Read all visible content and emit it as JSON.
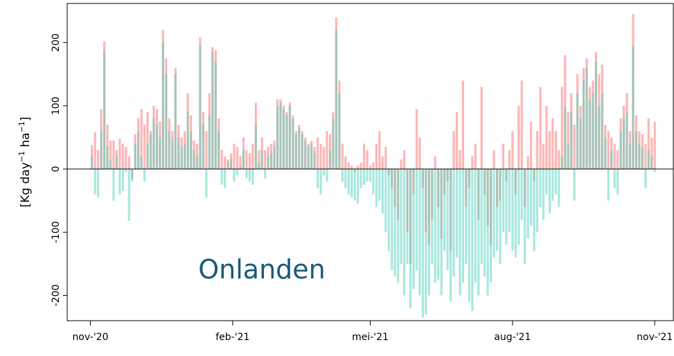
{
  "chart_data": {
    "type": "bar",
    "ylabel": [
      "[Kg day",
      "−1",
      " ha",
      "−1",
      "]"
    ],
    "annotation": "Onlanden",
    "xlim": [
      -15,
      377
    ],
    "xticks": [
      {
        "value": 0,
        "label": "nov-'20"
      },
      {
        "value": 92,
        "label": "feb-'21"
      },
      {
        "value": 181,
        "label": "mei-'21"
      },
      {
        "value": 273,
        "label": "aug-'21"
      },
      {
        "value": 365,
        "label": "nov-'21"
      }
    ],
    "ylim": [
      -240,
      262
    ],
    "yticks": [
      -200,
      -100,
      0,
      100,
      200
    ],
    "x": [
      1,
      3,
      5,
      7,
      9,
      11,
      13,
      15,
      17,
      19,
      21,
      23,
      25,
      27,
      29,
      31,
      33,
      35,
      37,
      39,
      41,
      43,
      45,
      47,
      49,
      51,
      53,
      55,
      57,
      59,
      61,
      63,
      65,
      67,
      69,
      71,
      73,
      75,
      77,
      79,
      81,
      83,
      85,
      87,
      89,
      91,
      93,
      95,
      97,
      99,
      101,
      103,
      105,
      107,
      109,
      111,
      113,
      115,
      117,
      119,
      121,
      123,
      125,
      127,
      129,
      131,
      133,
      135,
      137,
      139,
      141,
      143,
      145,
      147,
      149,
      151,
      153,
      155,
      157,
      159,
      161,
      163,
      165,
      167,
      169,
      171,
      173,
      175,
      177,
      179,
      181,
      183,
      185,
      187,
      189,
      191,
      193,
      195,
      197,
      199,
      201,
      203,
      205,
      207,
      209,
      211,
      213,
      215,
      217,
      219,
      221,
      223,
      225,
      227,
      229,
      231,
      233,
      235,
      237,
      239,
      241,
      243,
      245,
      247,
      249,
      251,
      253,
      255,
      257,
      259,
      261,
      263,
      265,
      267,
      269,
      271,
      273,
      275,
      277,
      279,
      281,
      283,
      285,
      287,
      289,
      291,
      293,
      295,
      297,
      299,
      301,
      303,
      305,
      307,
      309,
      311,
      313,
      315,
      317,
      319,
      321,
      323,
      325,
      327,
      329,
      331,
      333,
      335,
      337,
      339,
      341,
      343,
      345,
      347,
      349,
      351,
      353,
      355,
      357,
      359,
      361,
      363,
      365
    ],
    "series": [
      {
        "color": "#ff6b6b",
        "values": [
          38,
          58,
          30,
          95,
          202,
          70,
          45,
          45,
          30,
          48,
          40,
          35,
          20,
          -15,
          55,
          80,
          95,
          70,
          90,
          60,
          100,
          95,
          75,
          220,
          175,
          80,
          60,
          160,
          70,
          50,
          60,
          120,
          85,
          45,
          40,
          208,
          90,
          60,
          120,
          193,
          188,
          80,
          30,
          20,
          15,
          25,
          40,
          35,
          20,
          50,
          30,
          25,
          40,
          105,
          30,
          50,
          30,
          35,
          40,
          45,
          110,
          110,
          100,
          90,
          105,
          85,
          60,
          70,
          60,
          50,
          40,
          45,
          35,
          50,
          40,
          35,
          60,
          55,
          90,
          240,
          140,
          40,
          20,
          10,
          5,
          -5,
          5,
          10,
          40,
          30,
          5,
          10,
          40,
          60,
          20,
          35,
          -10,
          -30,
          -60,
          -80,
          15,
          30,
          -100,
          -150,
          -40,
          95,
          50,
          -30,
          -100,
          -120,
          -80,
          20,
          -60,
          -110,
          -40,
          -20,
          -130,
          60,
          90,
          30,
          140,
          -60,
          -30,
          20,
          40,
          -80,
          130,
          -40,
          -90,
          -120,
          30,
          -60,
          -50,
          40,
          -20,
          30,
          60,
          -40,
          100,
          140,
          -60,
          20,
          75,
          -20,
          60,
          130,
          40,
          100,
          60,
          80,
          60,
          30,
          130,
          180,
          90,
          120,
          70,
          150,
          100,
          160,
          175,
          130,
          140,
          185,
          150,
          165,
          70,
          60,
          50,
          40,
          30,
          80,
          100,
          120,
          60,
          245,
          85,
          60,
          55,
          40,
          80,
          50,
          75
        ]
      },
      {
        "color": "#4fd1be",
        "values": [
          20,
          -40,
          -45,
          60,
          185,
          35,
          15,
          -50,
          20,
          -40,
          -35,
          -5,
          -82,
          -20,
          40,
          60,
          20,
          -20,
          40,
          55,
          80,
          70,
          50,
          200,
          150,
          60,
          45,
          150,
          50,
          35,
          40,
          90,
          60,
          30,
          20,
          195,
          70,
          -45,
          85,
          185,
          170,
          60,
          -25,
          -30,
          10,
          15,
          -20,
          -10,
          5,
          30,
          -15,
          -20,
          -25,
          70,
          10,
          30,
          -15,
          20,
          25,
          35,
          100,
          105,
          95,
          85,
          100,
          80,
          55,
          65,
          55,
          45,
          35,
          40,
          25,
          -30,
          -40,
          -10,
          -20,
          30,
          80,
          220,
          120,
          -20,
          -30,
          -40,
          -45,
          -50,
          -55,
          -30,
          -25,
          -20,
          -20,
          -40,
          -60,
          -50,
          -70,
          -100,
          -130,
          -160,
          -170,
          -180,
          -150,
          -200,
          -150,
          -220,
          -190,
          -160,
          -200,
          -235,
          -230,
          -200,
          -150,
          -180,
          -175,
          -200,
          -130,
          -160,
          -210,
          -170,
          -140,
          -200,
          -180,
          -150,
          -210,
          -225,
          -180,
          -200,
          -150,
          -170,
          -200,
          -180,
          -140,
          -130,
          -150,
          -100,
          -120,
          -100,
          -130,
          -140,
          -120,
          -80,
          -150,
          -110,
          -90,
          -130,
          -100,
          -60,
          -80,
          -40,
          -70,
          -50,
          -40,
          -60,
          20,
          100,
          40,
          90,
          -50,
          120,
          80,
          140,
          160,
          110,
          120,
          170,
          100,
          120,
          50,
          -50,
          30,
          -30,
          -40,
          60,
          80,
          90,
          40,
          195,
          60,
          40,
          35,
          -30,
          30,
          20,
          -5
        ]
      }
    ]
  }
}
